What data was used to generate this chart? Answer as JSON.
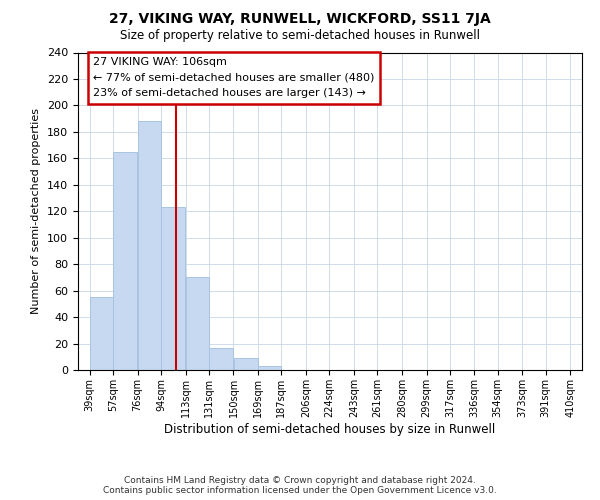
{
  "title": "27, VIKING WAY, RUNWELL, WICKFORD, SS11 7JA",
  "subtitle": "Size of property relative to semi-detached houses in Runwell",
  "xlabel": "Distribution of semi-detached houses by size in Runwell",
  "ylabel": "Number of semi-detached properties",
  "footer_line1": "Contains HM Land Registry data © Crown copyright and database right 2024.",
  "footer_line2": "Contains public sector information licensed under the Open Government Licence v3.0.",
  "bin_labels": [
    "39sqm",
    "57sqm",
    "76sqm",
    "94sqm",
    "113sqm",
    "131sqm",
    "150sqm",
    "169sqm",
    "187sqm",
    "206sqm",
    "224sqm",
    "243sqm",
    "261sqm",
    "280sqm",
    "299sqm",
    "317sqm",
    "336sqm",
    "354sqm",
    "373sqm",
    "391sqm",
    "410sqm"
  ],
  "bar_values": [
    55,
    165,
    188,
    123,
    70,
    17,
    9,
    3,
    0,
    0,
    0,
    0,
    0,
    0,
    0,
    0,
    0,
    0,
    0,
    0
  ],
  "bar_color": "#c6d9f0",
  "bar_edge_color": "#a8c4e0",
  "vline_color": "#cc0000",
  "annotation_title": "27 VIKING WAY: 106sqm",
  "annotation_line1": "← 77% of semi-detached houses are smaller (480)",
  "annotation_line2": "23% of semi-detached houses are larger (143) →",
  "annotation_box_edgecolor": "#cc0000",
  "annotation_box_facecolor": "#ffffff",
  "ylim_max": 240,
  "yticks": [
    0,
    20,
    40,
    60,
    80,
    100,
    120,
    140,
    160,
    180,
    200,
    220,
    240
  ],
  "property_sqm": 106,
  "bin_edges": [
    39,
    57,
    76,
    94,
    113,
    131,
    150,
    169,
    187,
    206,
    224,
    243,
    261,
    280,
    299,
    317,
    336,
    354,
    373,
    391,
    410
  ],
  "background_color": "#ffffff",
  "grid_color": "#c8d8e8"
}
